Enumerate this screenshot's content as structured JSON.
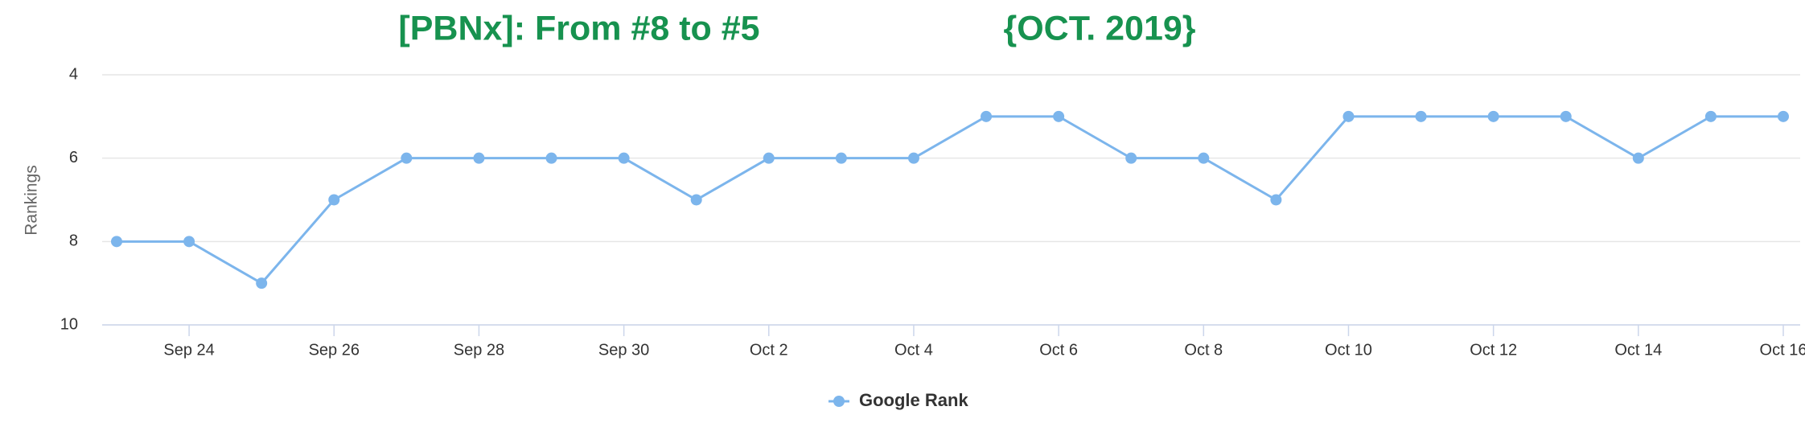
{
  "chart_data": {
    "type": "line",
    "title": "[PBNx]: From #8 to #5",
    "subtitle": "{OCT. 2019}",
    "y_label": "Rankings",
    "categories": [
      null,
      "Sep 24",
      null,
      "Sep 26",
      null,
      "Sep 28",
      null,
      "Sep 30",
      null,
      "Oct 2",
      null,
      "Oct 4",
      null,
      "Oct 6",
      null,
      "Oct 8",
      null,
      "Oct 10",
      null,
      "Oct 12",
      null,
      "Oct 14",
      null,
      "Oct 16"
    ],
    "series": [
      {
        "name": "Google Rank",
        "color": "#7cb5ec",
        "values": [
          8,
          8,
          9,
          7,
          6,
          6,
          6,
          6,
          7,
          6,
          6,
          6,
          5,
          5,
          6,
          6,
          7,
          5,
          5,
          5,
          5,
          6,
          5,
          5
        ]
      }
    ],
    "ylim": [
      4,
      10
    ],
    "yticks": [
      4,
      6,
      8,
      10
    ],
    "y_reversed": true,
    "grid": true
  }
}
